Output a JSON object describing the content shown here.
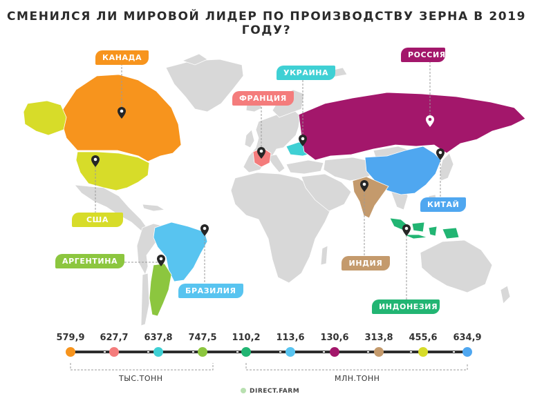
{
  "title": "СМЕНИЛСЯ ЛИ МИРОВОЙ ЛИДЕР ПО ПРОИЗВОДСТВУ ЗЕРНА В 2019 ГОДУ?",
  "countries": [
    {
      "id": "canada",
      "label": "КАНАДА",
      "color": "#f7941d"
    },
    {
      "id": "usa",
      "label": "США",
      "color": "#d7dc29"
    },
    {
      "id": "france",
      "label": "ФРАНЦИЯ",
      "color": "#f47c7c"
    },
    {
      "id": "ukraine",
      "label": "УКРАИНА",
      "color": "#3fd0d4"
    },
    {
      "id": "russia",
      "label": "РОССИЯ",
      "color": "#a3176b"
    },
    {
      "id": "china",
      "label": "КИТАЙ",
      "color": "#4fa7f0"
    },
    {
      "id": "india",
      "label": "ИНДИЯ",
      "color": "#c49a6c"
    },
    {
      "id": "indonesia",
      "label": "ИНДОНЕЗИЯ",
      "color": "#22b573"
    },
    {
      "id": "brazil",
      "label": "БРАЗИЛИЯ",
      "color": "#58c4f0"
    },
    {
      "id": "argentina",
      "label": "АРГЕНТИНА",
      "color": "#8cc63f"
    }
  ],
  "scale": [
    {
      "value": "579,9",
      "color": "#f7941d"
    },
    {
      "value": "627,7",
      "color": "#f47c7c"
    },
    {
      "value": "637,8",
      "color": "#3fd0d4"
    },
    {
      "value": "747,5",
      "color": "#8cc63f"
    },
    {
      "value": "110,2",
      "color": "#22b573"
    },
    {
      "value": "113,6",
      "color": "#58c4f0"
    },
    {
      "value": "130,6",
      "color": "#a3176b"
    },
    {
      "value": "313,8",
      "color": "#c49a6c"
    },
    {
      "value": "455,6",
      "color": "#d7dc29"
    },
    {
      "value": "634,9",
      "color": "#4fa7f0"
    }
  ],
  "units": {
    "thousand": "ТЫС.ТОНН",
    "million": "МЛН.ТОНН"
  },
  "brand": "DIRECT.FARM",
  "land_color": "#d8d8d8"
}
